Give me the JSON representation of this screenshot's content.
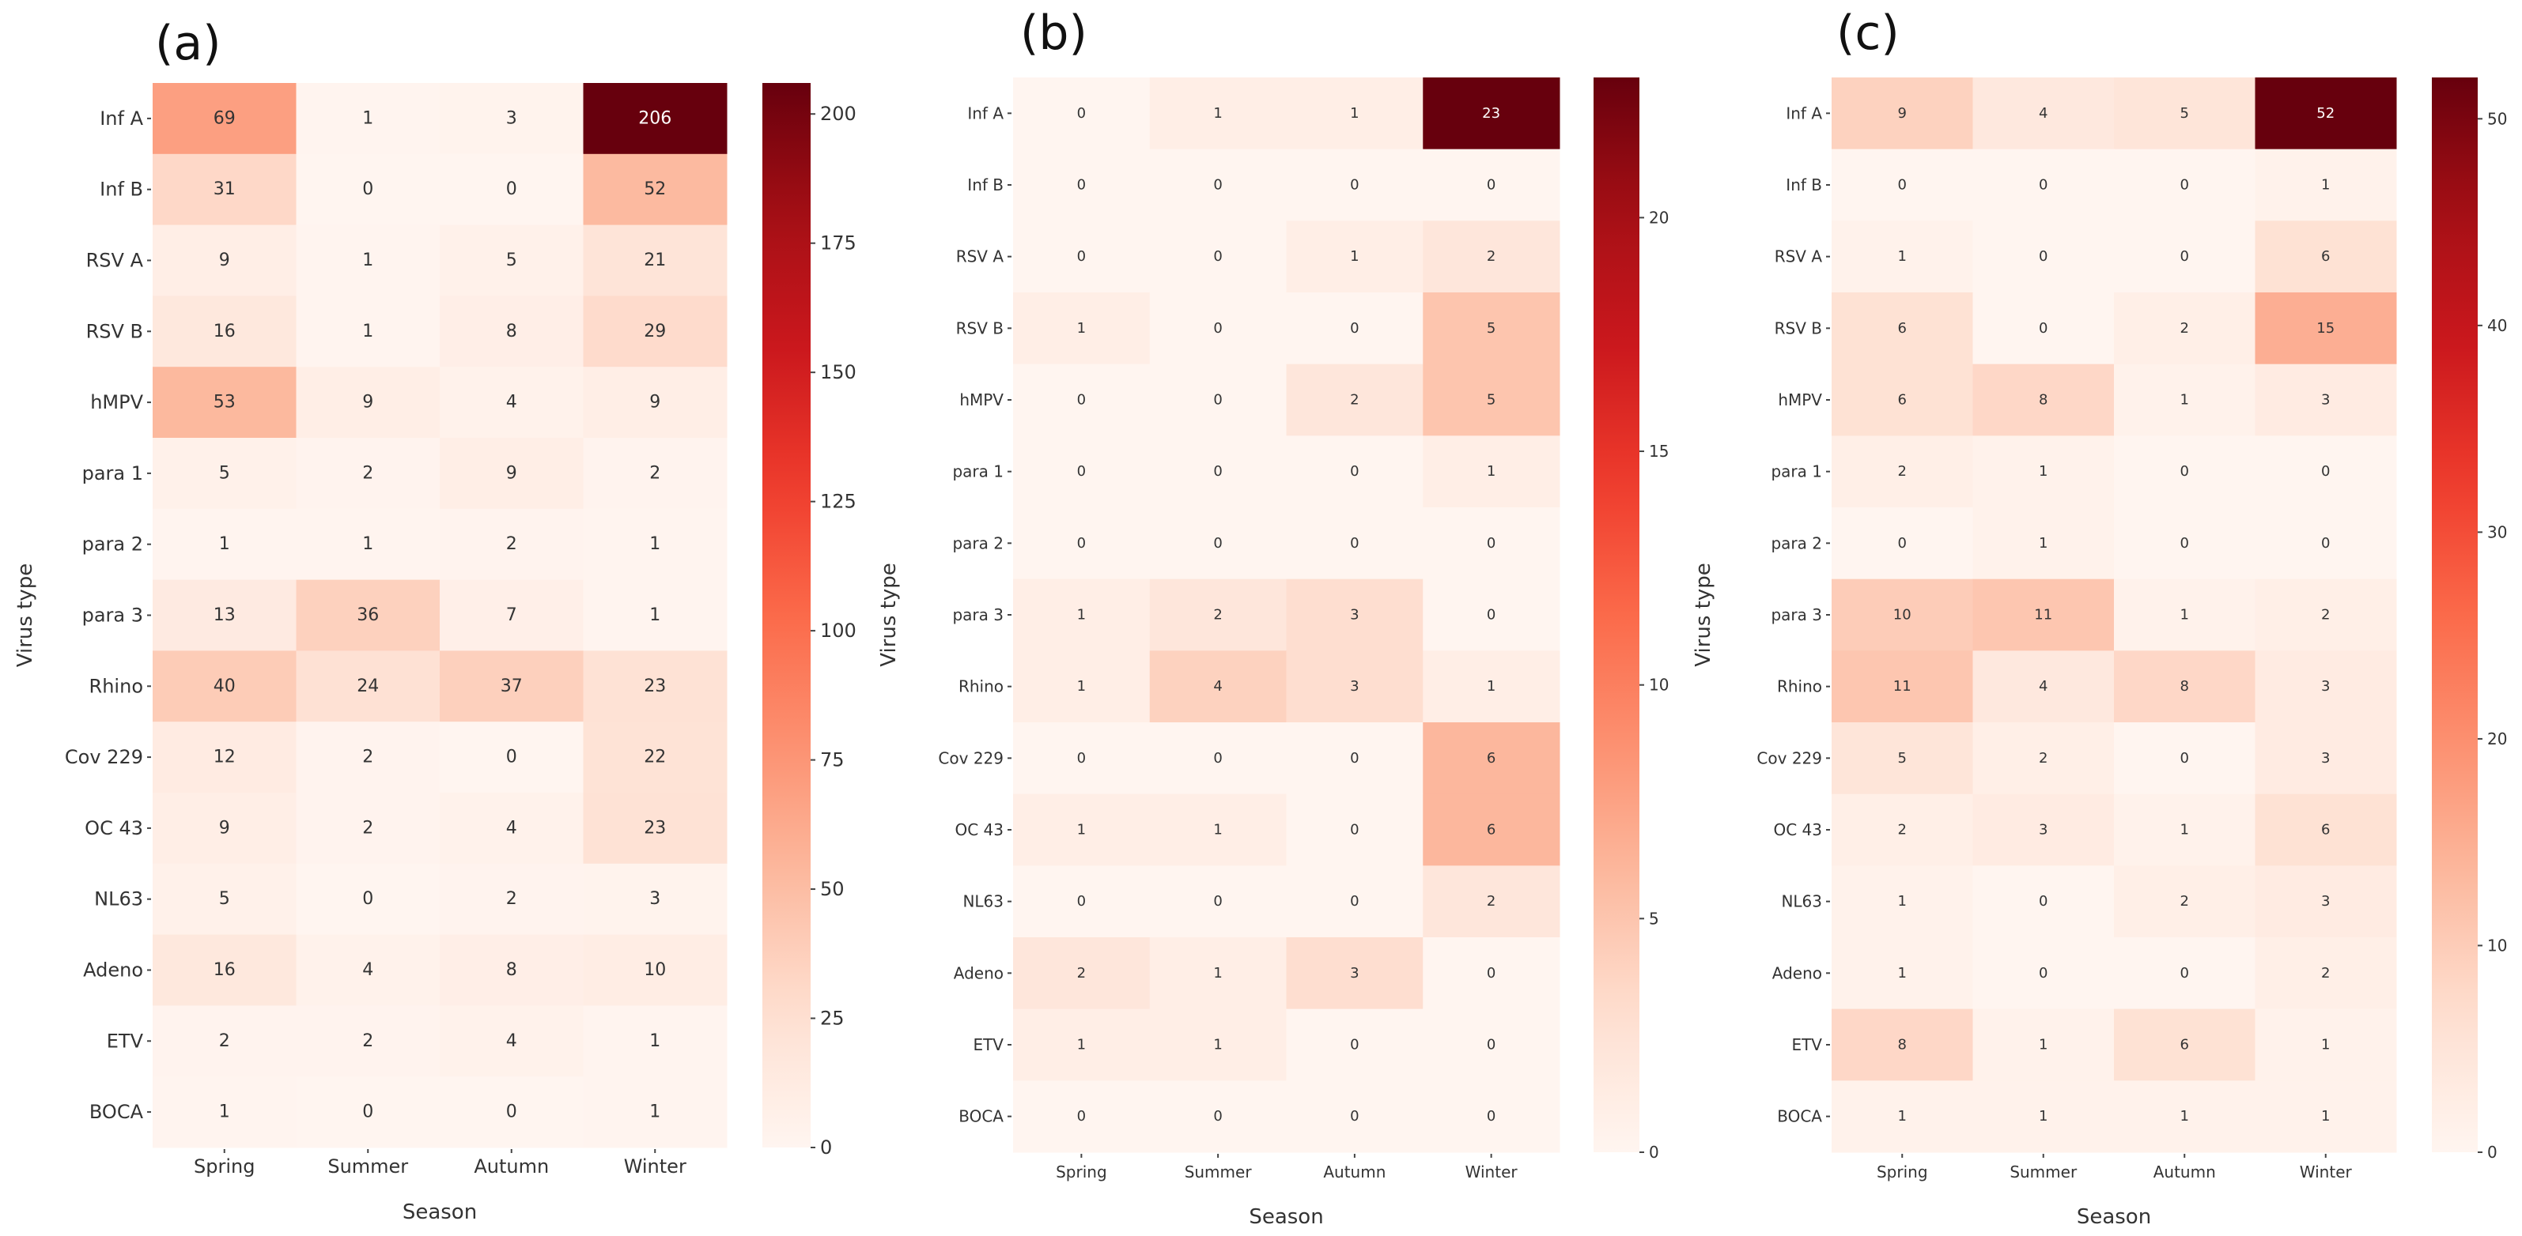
{
  "chart_data": [
    {
      "type": "heatmap",
      "panel_label": "(a)",
      "xlabel": "Season",
      "ylabel": "Virus type",
      "categories_x": [
        "Spring",
        "Summer",
        "Autumn",
        "Winter"
      ],
      "categories_y": [
        "Inf A",
        "Inf B",
        "RSV A",
        "RSV B",
        "hMPV",
        "para 1",
        "para 2",
        "para 3",
        "Rhino",
        "Cov 229",
        "OC 43",
        "NL63",
        "Adeno",
        "ETV",
        "BOCA"
      ],
      "values": [
        [
          69,
          1,
          3,
          206
        ],
        [
          31,
          0,
          0,
          52
        ],
        [
          9,
          1,
          5,
          21
        ],
        [
          16,
          1,
          8,
          29
        ],
        [
          53,
          9,
          4,
          9
        ],
        [
          5,
          2,
          9,
          2
        ],
        [
          1,
          1,
          2,
          1
        ],
        [
          13,
          36,
          7,
          1
        ],
        [
          40,
          24,
          37,
          23
        ],
        [
          12,
          2,
          0,
          22
        ],
        [
          9,
          2,
          4,
          23
        ],
        [
          5,
          0,
          2,
          3
        ],
        [
          16,
          4,
          8,
          10
        ],
        [
          2,
          2,
          4,
          1
        ],
        [
          1,
          0,
          0,
          1
        ]
      ],
      "colorbar": {
        "min": 0,
        "max": 206,
        "ticks": [
          0,
          25,
          50,
          75,
          100,
          125,
          150,
          175,
          200
        ]
      },
      "colormap": "Reds"
    },
    {
      "type": "heatmap",
      "panel_label": "(b)",
      "xlabel": "Season",
      "ylabel": "Virus type",
      "categories_x": [
        "Spring",
        "Summer",
        "Autumn",
        "Winter"
      ],
      "categories_y": [
        "Inf A",
        "Inf B",
        "RSV A",
        "RSV B",
        "hMPV",
        "para 1",
        "para 2",
        "para 3",
        "Rhino",
        "Cov 229",
        "OC 43",
        "NL63",
        "Adeno",
        "ETV",
        "BOCA"
      ],
      "values": [
        [
          0,
          1,
          1,
          23
        ],
        [
          0,
          0,
          0,
          0
        ],
        [
          0,
          0,
          1,
          2
        ],
        [
          1,
          0,
          0,
          5
        ],
        [
          0,
          0,
          2,
          5
        ],
        [
          0,
          0,
          0,
          1
        ],
        [
          0,
          0,
          0,
          0
        ],
        [
          1,
          2,
          3,
          0
        ],
        [
          1,
          4,
          3,
          1
        ],
        [
          0,
          0,
          0,
          6
        ],
        [
          1,
          1,
          0,
          6
        ],
        [
          0,
          0,
          0,
          2
        ],
        [
          2,
          1,
          3,
          0
        ],
        [
          1,
          1,
          0,
          0
        ],
        [
          0,
          0,
          0,
          0
        ]
      ],
      "colorbar": {
        "min": 0,
        "max": 23,
        "ticks": [
          0,
          5,
          10,
          15,
          20
        ]
      },
      "colormap": "Reds"
    },
    {
      "type": "heatmap",
      "panel_label": "(c)",
      "xlabel": "Season",
      "ylabel": "Virus type",
      "categories_x": [
        "Spring",
        "Summer",
        "Autumn",
        "Winter"
      ],
      "categories_y": [
        "Inf A",
        "Inf B",
        "RSV A",
        "RSV B",
        "hMPV",
        "para 1",
        "para 2",
        "para 3",
        "Rhino",
        "Cov 229",
        "OC 43",
        "NL63",
        "Adeno",
        "ETV",
        "BOCA"
      ],
      "values": [
        [
          9,
          4,
          5,
          52
        ],
        [
          0,
          0,
          0,
          1
        ],
        [
          1,
          0,
          0,
          6
        ],
        [
          6,
          0,
          2,
          15
        ],
        [
          6,
          8,
          1,
          3
        ],
        [
          2,
          1,
          0,
          0
        ],
        [
          0,
          1,
          0,
          0
        ],
        [
          10,
          11,
          1,
          2
        ],
        [
          11,
          4,
          8,
          3
        ],
        [
          5,
          2,
          0,
          3
        ],
        [
          2,
          3,
          1,
          6
        ],
        [
          1,
          0,
          2,
          3
        ],
        [
          1,
          0,
          0,
          2
        ],
        [
          8,
          1,
          6,
          1
        ],
        [
          1,
          1,
          1,
          1
        ]
      ],
      "colorbar": {
        "min": 0,
        "max": 52,
        "ticks": [
          0,
          10,
          20,
          30,
          40,
          50
        ]
      },
      "colormap": "Reds"
    }
  ]
}
